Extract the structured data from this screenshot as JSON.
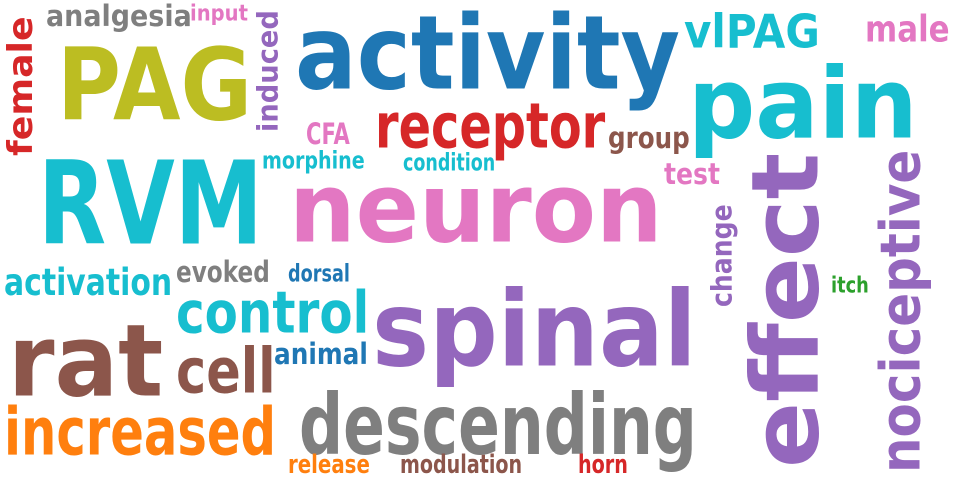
{
  "words": [
    {
      "text": "activity",
      "color": "#1f77b4"
    },
    {
      "text": "PAG",
      "color": "#bcbd22"
    },
    {
      "text": "neuron",
      "color": "#e377c2"
    },
    {
      "text": "spinal",
      "color": "#9467bd"
    },
    {
      "text": "RVM",
      "color": "#17becf"
    },
    {
      "text": "rat",
      "color": "#8c564b"
    },
    {
      "text": "pain",
      "color": "#17becf"
    },
    {
      "text": "effect",
      "color": "#9467bd"
    },
    {
      "text": "descending",
      "color": "#7f7f7f"
    },
    {
      "text": "receptor",
      "color": "#d62728"
    },
    {
      "text": "control",
      "color": "#17becf"
    },
    {
      "text": "increased",
      "color": "#ff7f0e"
    },
    {
      "text": "nociceptive",
      "color": "#9467bd"
    },
    {
      "text": "vlPAG",
      "color": "#17becf"
    },
    {
      "text": "cell",
      "color": "#8c564b"
    },
    {
      "text": "activation",
      "color": "#17becf"
    },
    {
      "text": "analgesia",
      "color": "#7f7f7f"
    },
    {
      "text": "female",
      "color": "#d62728"
    },
    {
      "text": "induced",
      "color": "#9467bd"
    },
    {
      "text": "male",
      "color": "#e377c2"
    },
    {
      "text": "evoked",
      "color": "#7f7f7f"
    },
    {
      "text": "animal",
      "color": "#1f77b4"
    },
    {
      "text": "group",
      "color": "#8c564b"
    },
    {
      "text": "change",
      "color": "#9467bd"
    },
    {
      "text": "test",
      "color": "#e377c2"
    },
    {
      "text": "CFA",
      "color": "#e377c2"
    },
    {
      "text": "morphine",
      "color": "#17becf"
    },
    {
      "text": "condition",
      "color": "#17becf"
    },
    {
      "text": "input",
      "color": "#e377c2"
    },
    {
      "text": "dorsal",
      "color": "#1f77b4"
    },
    {
      "text": "itch",
      "color": "#2ca02c"
    },
    {
      "text": "release",
      "color": "#ff7f0e"
    },
    {
      "text": "modulation",
      "color": "#8c564b"
    },
    {
      "text": "horn",
      "color": "#d62728"
    }
  ]
}
